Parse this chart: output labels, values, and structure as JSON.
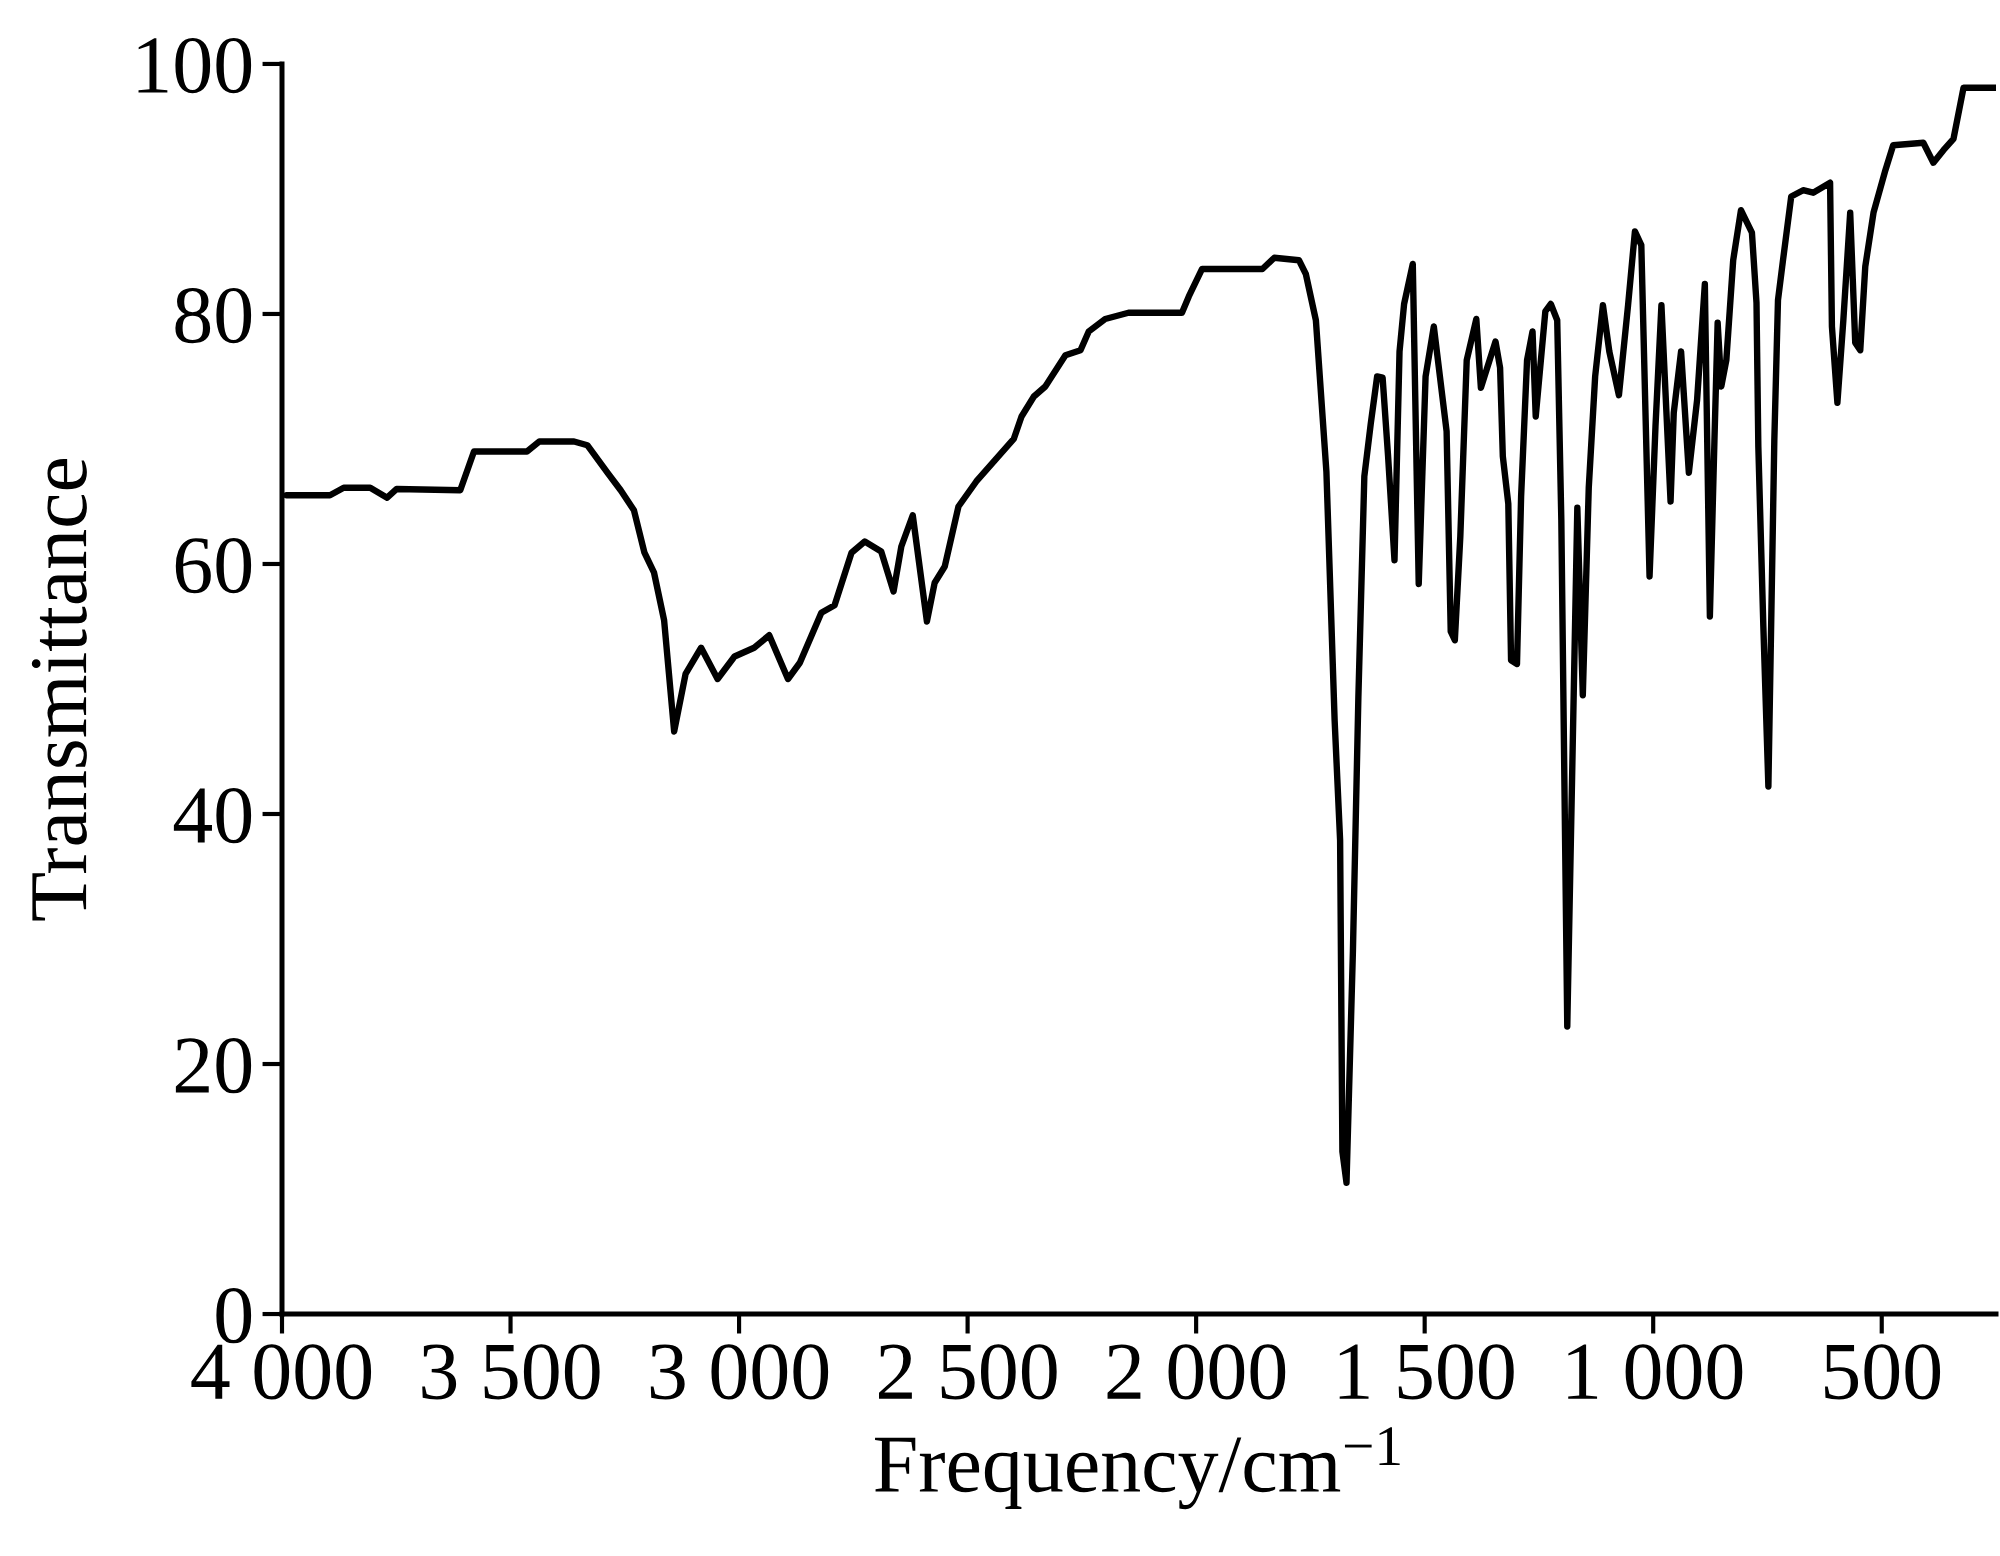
{
  "chart_data": {
    "type": "line",
    "xlabel": "Frequency/cm$^{−1}$",
    "ylabel": "Transmittance",
    "series": [
      {
        "color": "#000000",
        "x": [
          3990,
          3895,
          3865,
          3807,
          3770,
          3749,
          3610,
          3580,
          3464,
          3437,
          3361,
          3332,
          3288,
          3259,
          3230,
          3207,
          3186,
          3164,
          3142,
          3117,
          3083,
          3047,
          3010,
          2967,
          2934,
          2893,
          2867,
          2820,
          2791,
          2754,
          2725,
          2689,
          2662,
          2645,
          2620,
          2589,
          2572,
          2550,
          2520,
          2481,
          2440,
          2399,
          2382,
          2355,
          2330,
          2286,
          2253,
          2235,
          2199,
          2148,
          2031,
          2016,
          1987,
          1855,
          1829,
          1775,
          1760,
          1738,
          1715,
          1697,
          1685,
          1680,
          1671,
          1657,
          1645,
          1632,
          1618,
          1604,
          1592,
          1580,
          1566,
          1555,
          1545,
          1526,
          1513,
          1498,
          1480,
          1452,
          1443,
          1434,
          1422,
          1408,
          1387,
          1377,
          1345,
          1335,
          1329,
          1317,
          1311,
          1298,
          1289,
          1276,
          1264,
          1257,
          1236,
          1224,
          1210,
          1201,
          1188,
          1166,
          1154,
          1141,
          1127,
          1110,
          1096,
          1075,
          1055,
          1040,
          1026,
          1008,
          995,
          982,
          962,
          955,
          939,
          922,
          904,
          887,
          876,
          866,
          859,
          851,
          840,
          825,
          808,
          784,
          774,
          770,
          759,
          748,
          735,
          727,
          716,
          698,
          672,
          650,
          613,
          609,
          597,
          584,
          569,
          558,
          547,
          536,
          518,
          492,
          475,
          409,
          387,
          365,
          343,
          321,
          250
        ],
        "values": [
          65.5,
          65.5,
          66.1,
          66.1,
          65.3,
          66.0,
          65.9,
          69.0,
          69.0,
          69.8,
          69.8,
          69.5,
          67.3,
          65.9,
          64.3,
          60.9,
          59.3,
          55.5,
          46.6,
          51.2,
          53.3,
          50.8,
          52.6,
          53.3,
          54.3,
          50.8,
          52.1,
          56.1,
          56.7,
          60.9,
          61.8,
          61.0,
          57.8,
          61.4,
          63.9,
          55.4,
          58.5,
          59.8,
          64.6,
          66.6,
          68.3,
          70.0,
          71.8,
          73.4,
          74.2,
          76.7,
          77.1,
          78.6,
          79.6,
          80.1,
          80.1,
          81.4,
          83.6,
          83.6,
          84.5,
          84.3,
          83.2,
          79.5,
          67.4,
          47.5,
          37.9,
          13.0,
          10.5,
          29.0,
          49.4,
          67.0,
          71.2,
          75.0,
          74.9,
          68.6,
          60.3,
          77.0,
          80.8,
          84.0,
          58.4,
          75.0,
          79.0,
          70.6,
          54.6,
          53.9,
          62.2,
          76.3,
          79.6,
          74.1,
          77.8,
          75.7,
          68.6,
          64.8,
          52.3,
          52.0,
          65.4,
          76.3,
          78.6,
          71.8,
          80.2,
          80.8,
          79.5,
          63.5,
          23.0,
          64.5,
          49.5,
          66.1,
          75.0,
          80.7,
          77.0,
          73.5,
          80.7,
          86.6,
          85.5,
          59.0,
          71.0,
          80.7,
          65.0,
          72.1,
          77.0,
          67.3,
          73.1,
          82.4,
          55.8,
          69.9,
          79.3,
          74.2,
          76.3,
          84.3,
          88.3,
          86.5,
          80.9,
          69.4,
          55.0,
          42.2,
          69.9,
          81.1,
          84.3,
          89.4,
          89.9,
          89.7,
          90.5,
          79.0,
          72.9,
          79.5,
          88.1,
          77.7,
          77.1,
          83.8,
          88.1,
          91.5,
          93.5,
          93.7,
          92.1,
          93.1,
          94.0,
          98.1,
          98.1
        ]
      }
    ],
    "xlim": [
      4000,
      250
    ],
    "ylim": [
      0,
      100
    ],
    "xticks": [
      {
        "value": 4000,
        "label": "4 000"
      },
      {
        "value": 3500,
        "label": "3 500"
      },
      {
        "value": 3000,
        "label": "3 000"
      },
      {
        "value": 2500,
        "label": "2 500"
      },
      {
        "value": 2000,
        "label": "2 000"
      },
      {
        "value": 1500,
        "label": "1 500"
      },
      {
        "value": 1000,
        "label": "1 000"
      },
      500
    ],
    "yticks": [
      0,
      20,
      40,
      60,
      80,
      100
    ],
    "grid": false,
    "line_style": "solid"
  }
}
